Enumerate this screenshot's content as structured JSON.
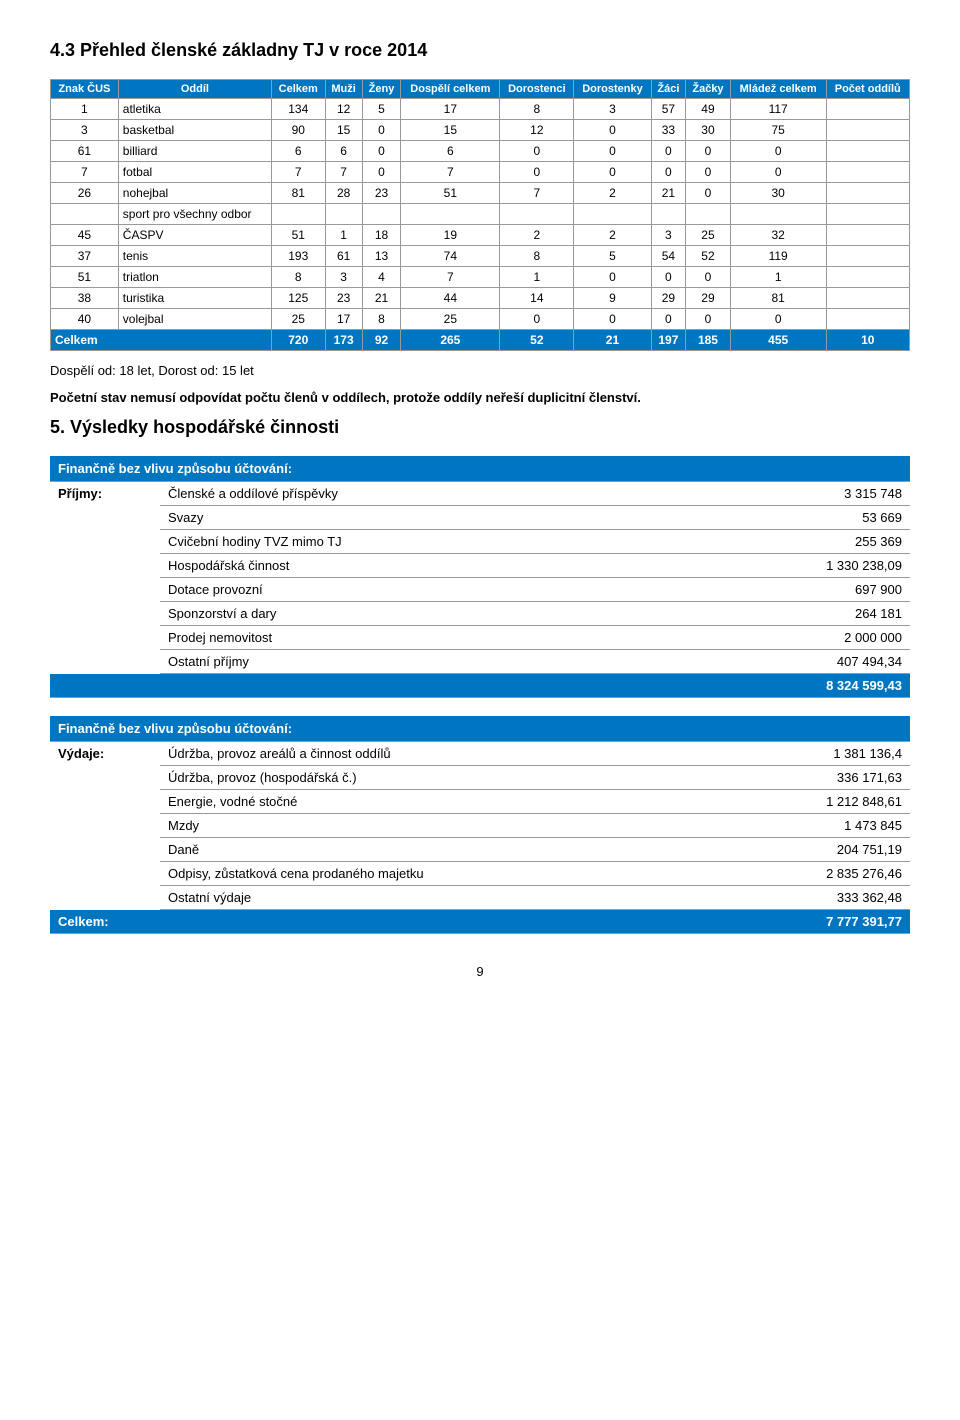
{
  "section43_title": "4.3 Přehled členské základny TJ v roce 2014",
  "table1": {
    "headers": [
      "Znak ČUS",
      "Oddíl",
      "Celkem",
      "Muži",
      "Ženy",
      "Dospělí celkem",
      "Dorostenci",
      "Dorostenky",
      "Žáci",
      "Žačky",
      "Mládež celkem",
      "Počet oddílů"
    ],
    "rows": [
      {
        "znak": "1",
        "name": "atletika",
        "vals": [
          "134",
          "12",
          "5",
          "17",
          "8",
          "3",
          "57",
          "49",
          "117",
          ""
        ]
      },
      {
        "znak": "3",
        "name": "basketbal",
        "vals": [
          "90",
          "15",
          "0",
          "15",
          "12",
          "0",
          "33",
          "30",
          "75",
          ""
        ]
      },
      {
        "znak": "61",
        "name": "billiard",
        "vals": [
          "6",
          "6",
          "0",
          "6",
          "0",
          "0",
          "0",
          "0",
          "0",
          ""
        ]
      },
      {
        "znak": "7",
        "name": "fotbal",
        "vals": [
          "7",
          "7",
          "0",
          "7",
          "0",
          "0",
          "0",
          "0",
          "0",
          ""
        ]
      },
      {
        "znak": "26",
        "name": "nohejbal",
        "vals": [
          "81",
          "28",
          "23",
          "51",
          "7",
          "2",
          "21",
          "0",
          "30",
          ""
        ]
      },
      {
        "znak": "",
        "name": "sport pro všechny odbor",
        "vals": [
          "",
          "",
          "",
          "",
          "",
          "",
          "",
          "",
          "",
          ""
        ],
        "sportpro": true
      },
      {
        "znak": "45",
        "name": "ČASPV",
        "vals": [
          "51",
          "1",
          "18",
          "19",
          "2",
          "2",
          "3",
          "25",
          "32",
          ""
        ],
        "caspv": true
      },
      {
        "znak": "37",
        "name": "tenis",
        "vals": [
          "193",
          "61",
          "13",
          "74",
          "8",
          "5",
          "54",
          "52",
          "119",
          ""
        ]
      },
      {
        "znak": "51",
        "name": "triatlon",
        "vals": [
          "8",
          "3",
          "4",
          "7",
          "1",
          "0",
          "0",
          "0",
          "1",
          ""
        ]
      },
      {
        "znak": "38",
        "name": "turistika",
        "vals": [
          "125",
          "23",
          "21",
          "44",
          "14",
          "9",
          "29",
          "29",
          "81",
          ""
        ]
      },
      {
        "znak": "40",
        "name": "volejbal",
        "vals": [
          "25",
          "17",
          "8",
          "25",
          "0",
          "0",
          "0",
          "0",
          "0",
          ""
        ]
      }
    ],
    "total": {
      "label": "Celkem",
      "vals": [
        "720",
        "173",
        "92",
        "265",
        "52",
        "21",
        "197",
        "185",
        "455",
        "10"
      ]
    }
  },
  "note1": "Dospělí od: 18 let, Dorost od: 15 let",
  "note2": "Početní stav nemusí odpovídat počtu členů v oddílech, protože oddíly neřeší duplicitní členství.",
  "section5_title": "5. Výsledky hospodářské činnosti",
  "income": {
    "header": "Finančně bez vlivu způsobu účtování:",
    "label": "Příjmy:",
    "rows": [
      {
        "item": "Členské a oddílové příspěvky",
        "val": "3 315 748"
      },
      {
        "item": "Svazy",
        "val": "53 669"
      },
      {
        "item": "Cvičební hodiny TVZ mimo TJ",
        "val": "255 369"
      },
      {
        "item": "Hospodářská činnost",
        "val": "1 330 238,09"
      },
      {
        "item": "Dotace provozní",
        "val": "697 900"
      },
      {
        "item": "Sponzorství a dary",
        "val": "264 181"
      },
      {
        "item": "Prodej nemovitost",
        "val": "2 000 000"
      },
      {
        "item": "Ostatní příjmy",
        "val": "407 494,34"
      }
    ],
    "total": "8 324 599,43"
  },
  "expenses": {
    "header": "Finančně bez vlivu způsobu účtování:",
    "label": "Výdaje:",
    "rows": [
      {
        "item": "Údržba, provoz areálů a činnost oddílů",
        "val": "1 381 136,4"
      },
      {
        "item": "Údržba, provoz (hospodářská č.)",
        "val": "336 171,63"
      },
      {
        "item": "Energie, vodné stočné",
        "val": "1 212 848,61"
      },
      {
        "item": "Mzdy",
        "val": "1 473 845"
      },
      {
        "item": "Daně",
        "val": "204 751,19"
      },
      {
        "item": "Odpisy, zůstatková cena prodaného majetku",
        "val": "2 835 276,46"
      },
      {
        "item": "Ostatní výdaje",
        "val": "333 362,48"
      }
    ],
    "total_label": "Celkem:",
    "total": "7 777 391,77"
  },
  "page_number": "9"
}
